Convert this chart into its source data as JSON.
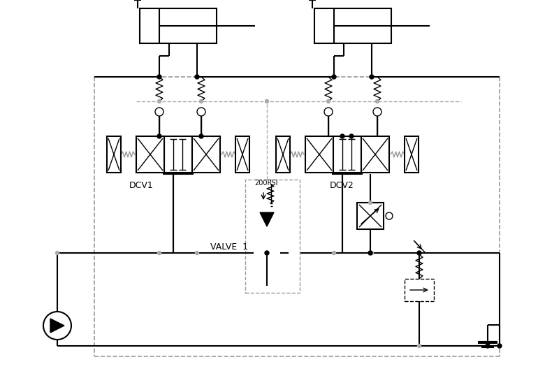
{
  "bg_color": "#ffffff",
  "line_color": "#000000",
  "dashed_color": "#aaaaaa",
  "dcv1_label": "DCV1",
  "dcv2_label": "DCV2",
  "valve1_label": "VALVE  1",
  "pressure_label": "200PSI"
}
